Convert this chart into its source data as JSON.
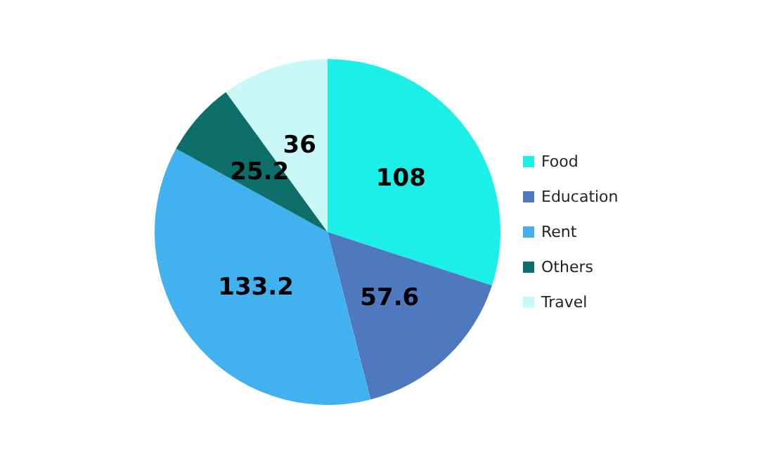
{
  "chart_data": {
    "type": "pie",
    "categories": [
      "Food",
      "Education",
      "Rent",
      "Others",
      "Travel"
    ],
    "values": [
      108,
      57.6,
      133.2,
      25.2,
      36
    ],
    "colors": [
      "#1ceee8",
      "#4f79bf",
      "#41b2ef",
      "#0e6f6a",
      "#c9f8f6"
    ],
    "data_labels": true,
    "legend": "right"
  }
}
